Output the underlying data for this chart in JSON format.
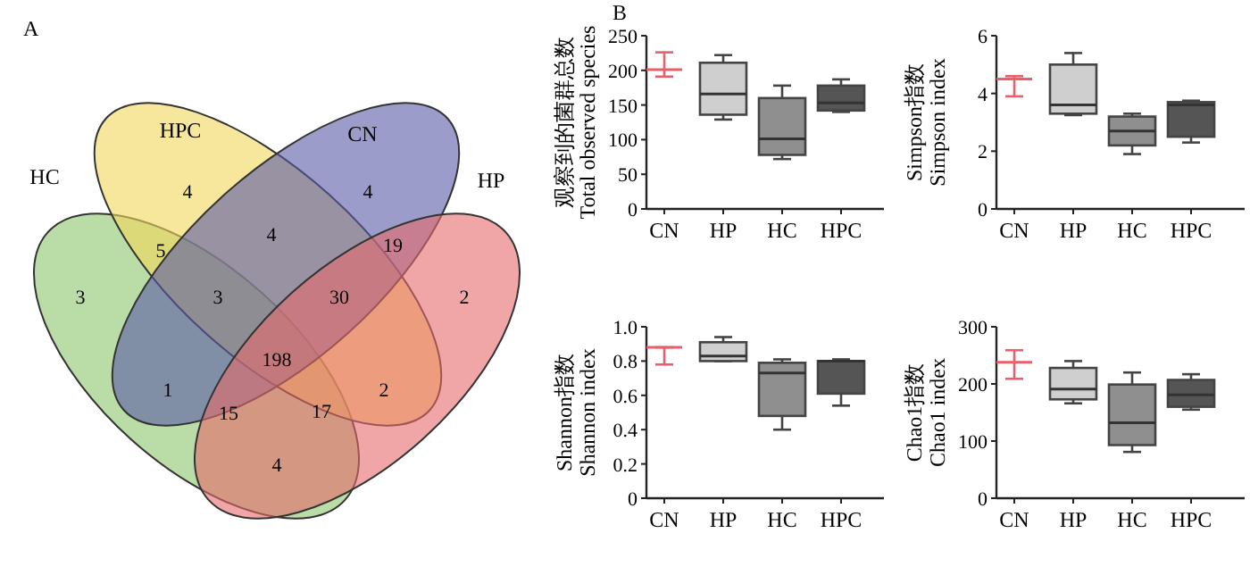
{
  "chart_data": [
    {
      "type": "other",
      "title": "A",
      "categories": [
        "HC",
        "HPC",
        "CN",
        "HP"
      ],
      "colors": [
        "#8cc46a",
        "#f2d75a",
        "#5a5aa6",
        "#e66a6a"
      ],
      "annotations": [
        "3",
        "4",
        "4",
        "2",
        "5",
        "4",
        "19",
        "3",
        "30",
        "198",
        "1",
        "2",
        "15",
        "17",
        "4"
      ]
    },
    {
      "type": "box",
      "title": "B",
      "ylabel": "观察到的菌群总数\nTotal observed species",
      "categories": [
        "CN",
        "HP",
        "HC",
        "HPC"
      ],
      "colors": [
        "#e8606a",
        "#cfcfcf",
        "#8f8f8f",
        "#555555"
      ],
      "ylim": [
        0,
        250
      ],
      "yticks": [
        0,
        50,
        100,
        150,
        200,
        250
      ],
      "boxes": [
        {
          "low": 191,
          "q1": 201,
          "median": 201,
          "q3": 201,
          "high": 226
        },
        {
          "low": 129,
          "q1": 136,
          "median": 166,
          "q3": 211,
          "high": 222
        },
        {
          "low": 72,
          "q1": 78,
          "median": 101,
          "q3": 160,
          "high": 178
        },
        {
          "low": 140,
          "q1": 142,
          "median": 153,
          "q3": 178,
          "high": 187
        }
      ]
    },
    {
      "type": "box",
      "ylabel": "Simpson指数\nSimpson index",
      "categories": [
        "CN",
        "HP",
        "HC",
        "HPC"
      ],
      "colors": [
        "#e8606a",
        "#cfcfcf",
        "#8f8f8f",
        "#555555"
      ],
      "ylim": [
        0,
        6
      ],
      "yticks": [
        0,
        2,
        4,
        6
      ],
      "boxes": [
        {
          "low": 3.9,
          "q1": 4.5,
          "median": 4.5,
          "q3": 4.5,
          "high": 4.6
        },
        {
          "low": 3.25,
          "q1": 3.3,
          "median": 3.6,
          "q3": 5.0,
          "high": 5.4
        },
        {
          "low": 1.9,
          "q1": 2.2,
          "median": 2.7,
          "q3": 3.2,
          "high": 3.3
        },
        {
          "low": 2.3,
          "q1": 2.5,
          "median": 3.6,
          "q3": 3.7,
          "high": 3.75
        }
      ]
    },
    {
      "type": "box",
      "ylabel": "Shannon指数\nShannon index",
      "categories": [
        "CN",
        "HP",
        "HC",
        "HPC"
      ],
      "colors": [
        "#e8606a",
        "#cfcfcf",
        "#8f8f8f",
        "#555555"
      ],
      "ylim": [
        0,
        1
      ],
      "yticks": [
        0,
        {
          "value": 0.2,
          "label": "0.2"
        },
        {
          "value": 0.4,
          "label": "0.4"
        },
        {
          "value": 0.6,
          "label": "0.6"
        },
        {
          "value": 0.8,
          "label": "0.8"
        },
        {
          "value": 1,
          "label": "1.0"
        }
      ],
      "boxes": [
        {
          "low": 0.78,
          "q1": 0.88,
          "median": 0.88,
          "q3": 0.88,
          "high": 0.88
        },
        {
          "low": 0.8,
          "q1": 0.8,
          "median": 0.83,
          "q3": 0.91,
          "high": 0.94
        },
        {
          "low": 0.4,
          "q1": 0.48,
          "median": 0.73,
          "q3": 0.79,
          "high": 0.81
        },
        {
          "low": 0.54,
          "q1": 0.61,
          "median": 0.8,
          "q3": 0.8,
          "high": 0.81
        }
      ]
    },
    {
      "type": "box",
      "ylabel": "Chao1指数\nChao1 index",
      "categories": [
        "CN",
        "HP",
        "HC",
        "HPC"
      ],
      "colors": [
        "#e8606a",
        "#cfcfcf",
        "#8f8f8f",
        "#555555"
      ],
      "ylim": [
        0,
        300
      ],
      "yticks": [
        0,
        100,
        200,
        300
      ],
      "boxes": [
        {
          "low": 209,
          "q1": 238,
          "median": 238,
          "q3": 238,
          "high": 259
        },
        {
          "low": 166,
          "q1": 173,
          "median": 191,
          "q3": 228,
          "high": 240
        },
        {
          "low": 81,
          "q1": 93,
          "median": 132,
          "q3": 199,
          "high": 220
        },
        {
          "low": 155,
          "q1": 160,
          "median": 181,
          "q3": 207,
          "high": 217
        }
      ]
    }
  ]
}
